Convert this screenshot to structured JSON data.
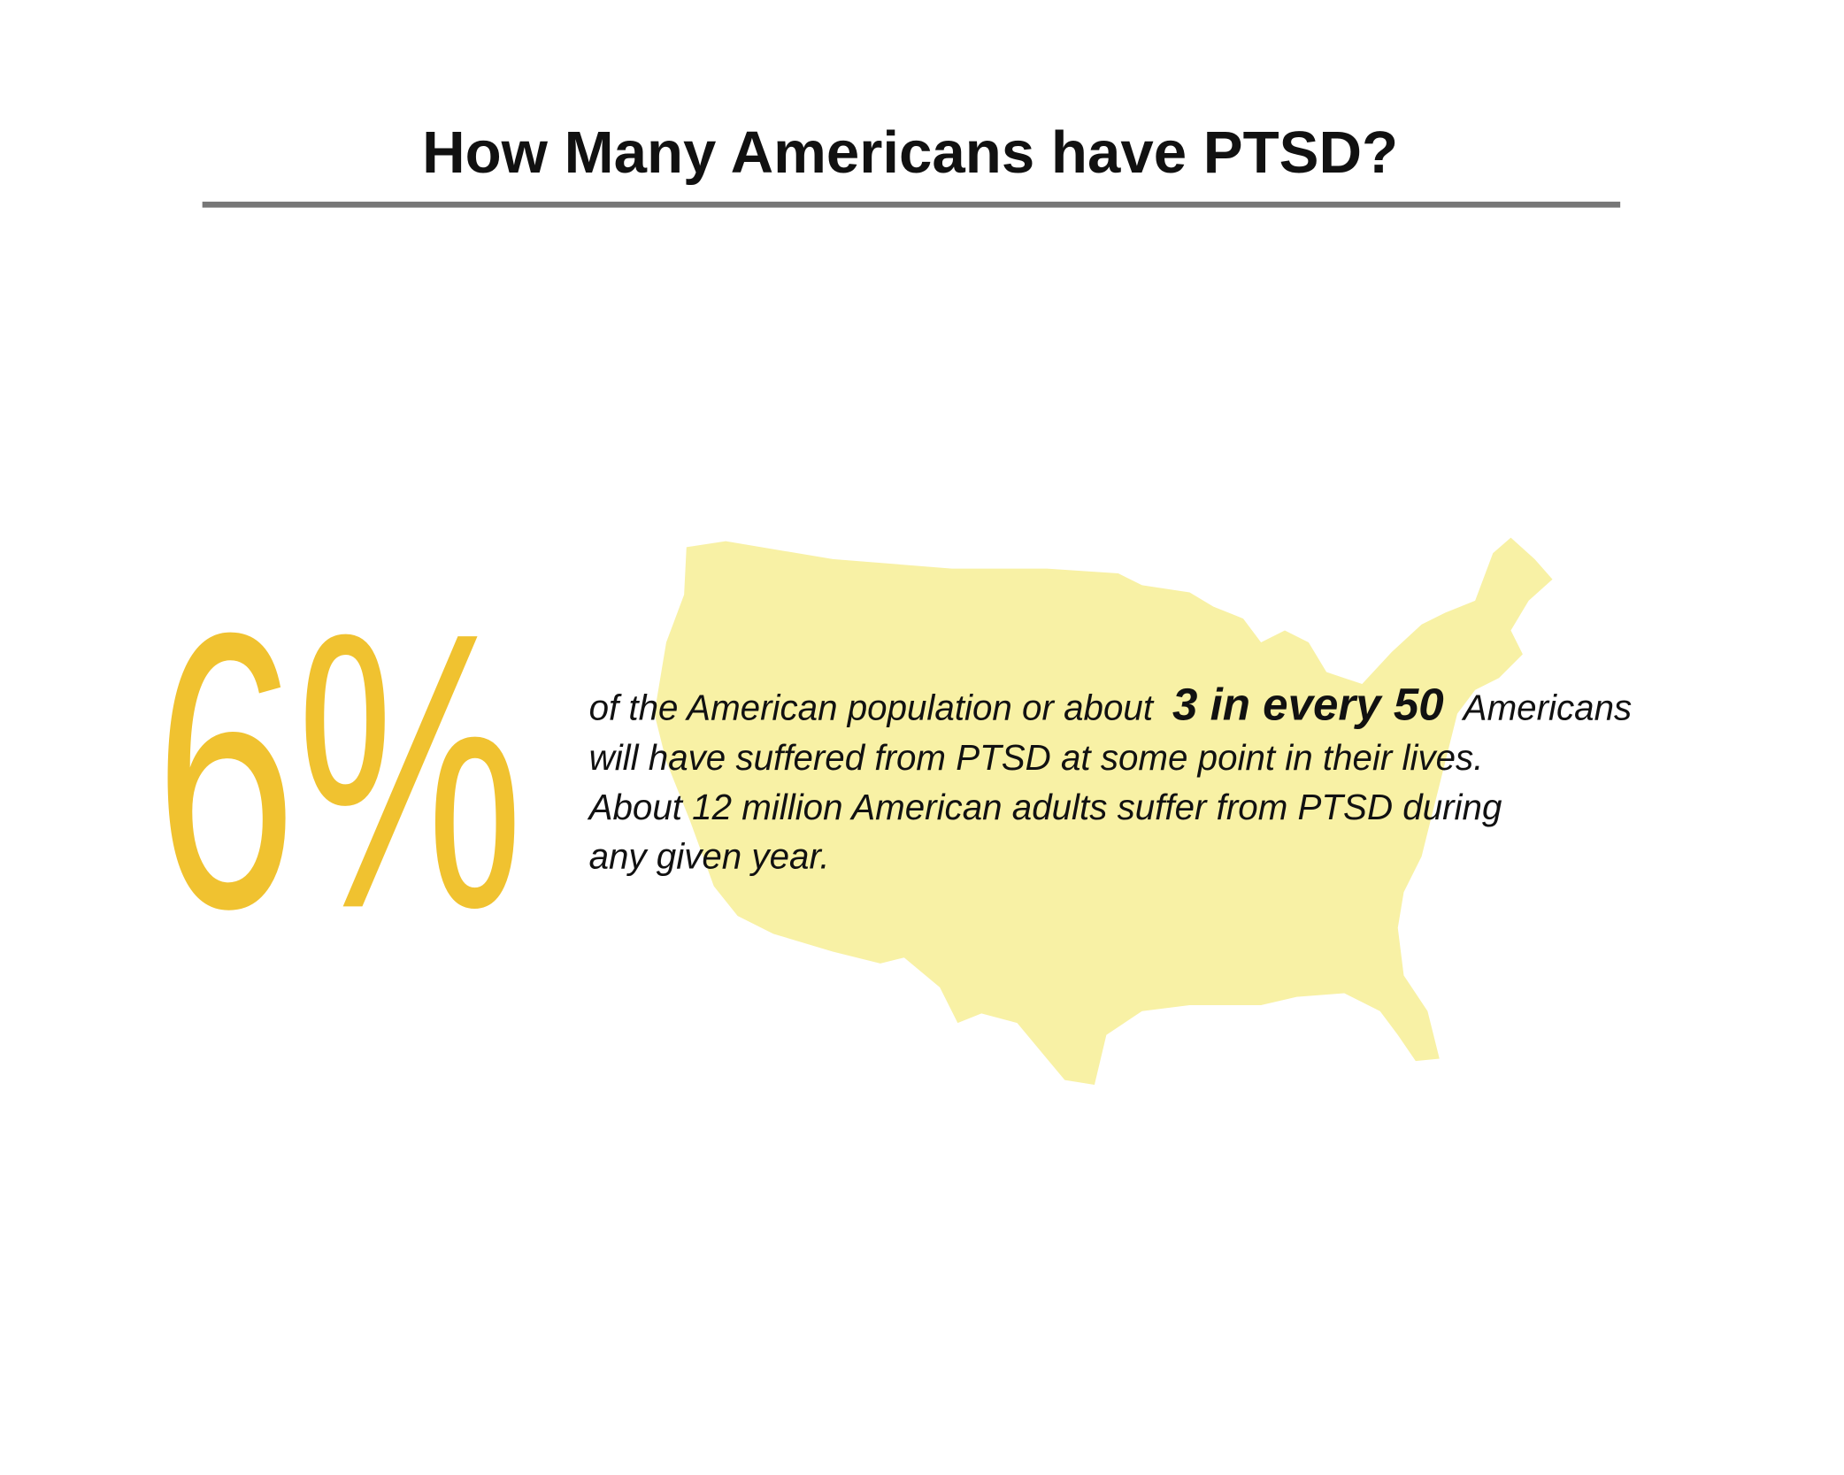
{
  "header": {
    "title": "How Many Americans have PTSD?"
  },
  "stat": {
    "value": "6%"
  },
  "description": {
    "lines": [
      [
        "of the American population or about",
        "3 in every 50",
        "Americans"
      ],
      [
        "will have suffered from PTSD at some point in their lives."
      ],
      [
        "About 12 million American adults suffer from PTSD during"
      ],
      [
        "any given year."
      ]
    ]
  }
}
